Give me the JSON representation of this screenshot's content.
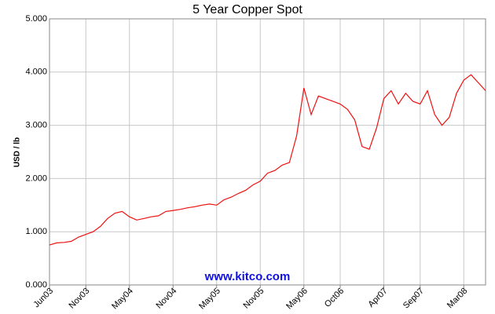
{
  "chart_data": {
    "type": "line",
    "title": "5 Year Copper Spot",
    "y_label": "USD / lb",
    "annotation": "www.kitco.com",
    "x": [
      "2003-06",
      "2003-07",
      "2003-08",
      "2003-09",
      "2003-10",
      "2003-11",
      "2003-12",
      "2004-01",
      "2004-02",
      "2004-03",
      "2004-04",
      "2004-05",
      "2004-06",
      "2004-07",
      "2004-08",
      "2004-09",
      "2004-10",
      "2004-11",
      "2004-12",
      "2005-01",
      "2005-02",
      "2005-03",
      "2005-04",
      "2005-05",
      "2005-06",
      "2005-07",
      "2005-08",
      "2005-09",
      "2005-10",
      "2005-11",
      "2005-12",
      "2006-01",
      "2006-02",
      "2006-03",
      "2006-04",
      "2006-05",
      "2006-06",
      "2006-07",
      "2006-08",
      "2006-09",
      "2006-10",
      "2006-11",
      "2006-12",
      "2007-01",
      "2007-02",
      "2007-03",
      "2007-04",
      "2007-05",
      "2007-06",
      "2007-07",
      "2007-08",
      "2007-09",
      "2007-10",
      "2007-11",
      "2007-12",
      "2008-01",
      "2008-02",
      "2008-03",
      "2008-04",
      "2008-05",
      "2008-06"
    ],
    "series": [
      {
        "name": "Copper Spot",
        "color": "#ee1111",
        "values": [
          0.75,
          0.79,
          0.8,
          0.82,
          0.9,
          0.95,
          1.0,
          1.1,
          1.25,
          1.35,
          1.38,
          1.28,
          1.22,
          1.25,
          1.28,
          1.3,
          1.38,
          1.4,
          1.42,
          1.45,
          1.47,
          1.5,
          1.52,
          1.5,
          1.6,
          1.65,
          1.72,
          1.78,
          1.88,
          1.95,
          2.1,
          2.15,
          2.25,
          2.3,
          2.8,
          3.7,
          3.2,
          3.55,
          3.5,
          3.45,
          3.4,
          3.3,
          3.1,
          2.6,
          2.55,
          2.95,
          3.5,
          3.65,
          3.4,
          3.6,
          3.45,
          3.4,
          3.65,
          3.2,
          3.0,
          3.15,
          3.6,
          3.85,
          3.95,
          3.8,
          3.65
        ]
      }
    ],
    "xlim": [
      "2003-06",
      "2008-06"
    ],
    "xticks": [
      {
        "value": "2003-06",
        "label": "Jun03"
      },
      {
        "value": "2003-11",
        "label": "Nov03"
      },
      {
        "value": "2004-05",
        "label": "May04"
      },
      {
        "value": "2004-11",
        "label": "Nov04"
      },
      {
        "value": "2005-05",
        "label": "May05"
      },
      {
        "value": "2005-11",
        "label": "Nov05"
      },
      {
        "value": "2006-05",
        "label": "May06"
      },
      {
        "value": "2006-10",
        "label": "Oct06"
      },
      {
        "value": "2007-04",
        "label": "Apr07"
      },
      {
        "value": "2007-09",
        "label": "Sep07"
      },
      {
        "value": "2008-03",
        "label": "Mar08"
      }
    ],
    "ylim": [
      0,
      5
    ],
    "yticks": [
      {
        "value": 0,
        "label": "0.000"
      },
      {
        "value": 1,
        "label": "1.000"
      },
      {
        "value": 2,
        "label": "2.000"
      },
      {
        "value": 3,
        "label": "3.000"
      },
      {
        "value": 4,
        "label": "4.000"
      },
      {
        "value": 5,
        "label": "5.000"
      }
    ],
    "grid": true
  }
}
